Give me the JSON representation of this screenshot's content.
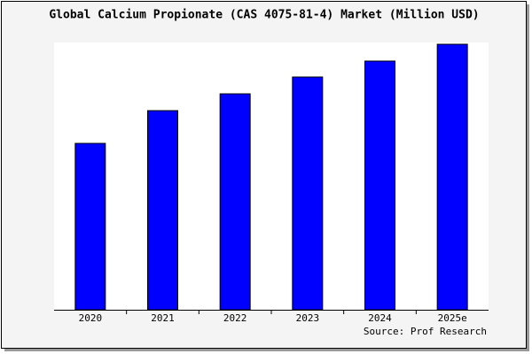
{
  "chart_data": {
    "type": "bar",
    "title": "Global Calcium Propionate (CAS 4075-81-4) Market (Million USD)",
    "categories": [
      "2020",
      "2021",
      "2022",
      "2023",
      "2024",
      "2025e"
    ],
    "values": [
      188,
      225,
      244,
      263,
      281,
      300
    ],
    "color": "#0000ff",
    "ylim": [
      0,
      302
    ],
    "source": "Source: Prof Research"
  }
}
